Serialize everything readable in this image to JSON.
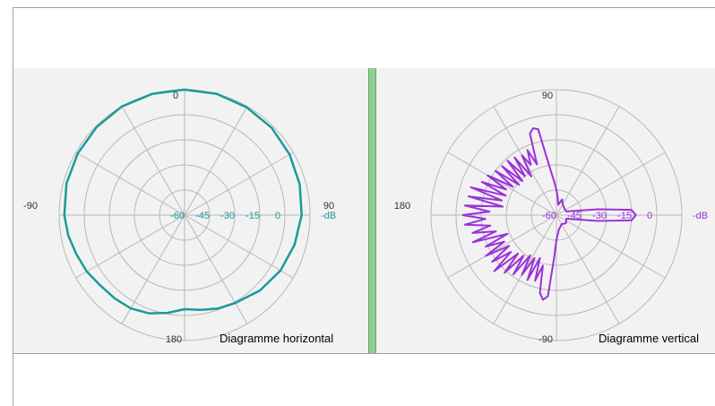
{
  "chart_data": [
    {
      "type": "polar",
      "title": "Diagramme horizontal",
      "angle_labels": {
        "top": "0",
        "right": "90",
        "bottom": "180",
        "left": "-90"
      },
      "radial_ticks": [
        "-60",
        "-45",
        "-30",
        "-15",
        "0"
      ],
      "radial_unit": "-dB",
      "rlim": [
        -60,
        0
      ],
      "grid": true,
      "line_color": "#1a9a9a",
      "series": [
        {
          "angle_deg": [
            0,
            15,
            30,
            45,
            60,
            75,
            90,
            105,
            120,
            135,
            150,
            160,
            170,
            180,
            190,
            200,
            210,
            220,
            230,
            240,
            250,
            260,
            270,
            285,
            300,
            315,
            330,
            345
          ],
          "value_db": [
            0,
            0,
            -0.5,
            -1,
            -2,
            -3,
            -4,
            -5.5,
            -7,
            -9,
            -11.5,
            -12.5,
            -14,
            -15,
            -12.5,
            -10,
            -8.5,
            -8,
            -7.5,
            -6,
            -5,
            -3.5,
            -2.5,
            -1.5,
            -1,
            -0.5,
            0,
            0
          ]
        }
      ]
    },
    {
      "type": "polar",
      "title": "Diagramme vertical",
      "angle_labels": {
        "top": "90",
        "left": "180",
        "bottom": "-90"
      },
      "radial_ticks": [
        "-60",
        "-45",
        "-30",
        "-15",
        "0"
      ],
      "radial_unit": "-dB",
      "rlim": [
        -60,
        0
      ],
      "grid": true,
      "line_color": "#9b30d9",
      "series": [
        {
          "angle_deg": [
            0,
            3,
            6,
            9,
            12,
            15,
            18,
            21,
            24,
            27,
            30,
            33,
            36,
            39,
            42,
            45,
            48,
            51,
            54,
            57,
            60,
            63,
            66,
            69,
            72,
            75,
            78,
            81,
            84,
            87,
            90,
            95,
            100,
            110,
            120,
            140,
            160,
            172,
            176,
            180,
            184,
            188,
            200,
            220,
            240,
            260,
            270,
            273,
            276,
            279,
            282,
            285,
            288,
            291,
            294,
            297,
            300,
            303,
            306,
            309,
            312,
            315,
            318,
            321,
            324,
            327,
            330,
            333,
            336,
            339,
            342,
            345,
            348,
            351,
            354,
            357,
            360
          ],
          "value_db": [
            -15,
            -28,
            -16,
            -34,
            -17,
            -33,
            -17,
            -34,
            -21,
            -33,
            -22,
            -35,
            -24,
            -37,
            -25,
            -37,
            -25,
            -36,
            -26,
            -38,
            -27,
            -33,
            -26,
            -34,
            -19,
            -17,
            -18,
            -34,
            -41,
            -45,
            -48,
            -52,
            -55,
            -52,
            -54,
            -55,
            -55,
            -40,
            -24,
            -22,
            -24,
            -40,
            -55,
            -54,
            -55,
            -53,
            -48,
            -40,
            -21,
            -19,
            -22,
            -35,
            -27,
            -38,
            -26,
            -37,
            -27,
            -37,
            -25,
            -35,
            -23,
            -34,
            -20,
            -32,
            -22,
            -33,
            -21,
            -32,
            -23,
            -35,
            -18,
            -30,
            -19,
            -28,
            -16,
            -26,
            -15
          ]
        }
      ]
    }
  ]
}
